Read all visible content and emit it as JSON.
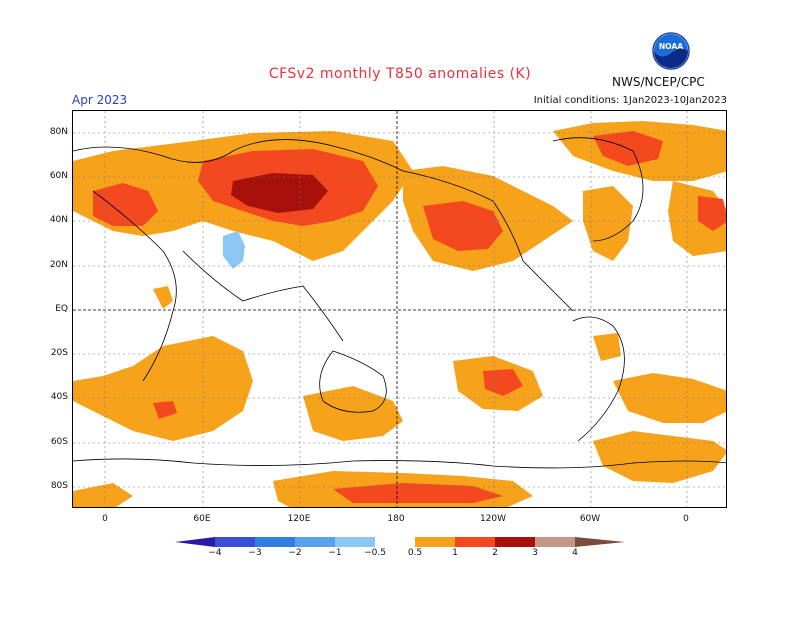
{
  "header": {
    "title": "CFSv2 monthly T850 anomalies (K)",
    "date": "Apr 2023",
    "initial_conditions": "Initial conditions: 1Jan2023-10Jan2023",
    "agency": "NWS/NCEP/CPC",
    "logo_text": "NOAA"
  },
  "axes": {
    "lat_ticks": [
      "80N",
      "60N",
      "40N",
      "20N",
      "EQ",
      "20S",
      "40S",
      "60S",
      "80S"
    ],
    "lon_ticks": [
      "0",
      "60E",
      "120E",
      "180",
      "120W",
      "60W",
      "0"
    ]
  },
  "legend": {
    "labels": [
      "−4",
      "−3",
      "−2",
      "−1",
      "−0.5",
      "0.5",
      "1",
      "2",
      "3",
      "4"
    ],
    "colors": [
      "#2a1aa8",
      "#3a4fd6",
      "#2f7fe0",
      "#5aa0ee",
      "#8cc6f2",
      "#ffffff",
      "#f7a21b",
      "#f4491e",
      "#a8100c",
      "#c49884",
      "#7a4c3e"
    ]
  },
  "anomaly_colors": {
    "0.5": "#f7a21b",
    "1": "#f4491e",
    "2": "#a8100c",
    "-0.5": "#8cc6f2"
  }
}
